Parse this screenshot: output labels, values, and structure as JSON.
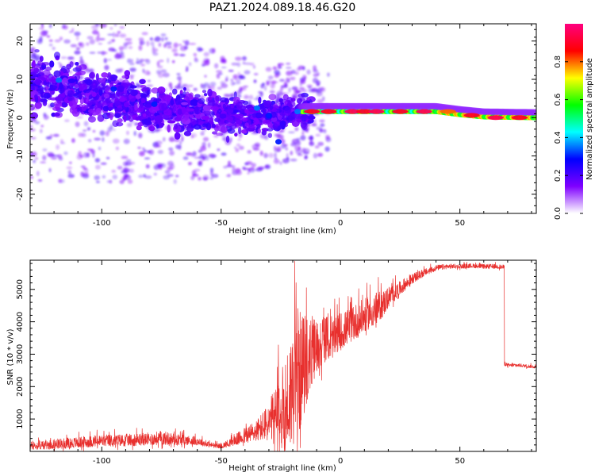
{
  "title": "PAZ1.2024.089.18.46.G20",
  "chart_data": [
    {
      "type": "heatmap",
      "xlabel": "Height of straight line (km)",
      "ylabel": "Frequency (Hz)",
      "xlim": [
        -130,
        82
      ],
      "ylim": [
        -25,
        24.5
      ],
      "xticks": [
        -100,
        -50,
        0,
        50
      ],
      "yticks": [
        20,
        10,
        0,
        -10,
        -20
      ],
      "colorbar": {
        "label": "Normalized spectral amplitude",
        "range": [
          0,
          1
        ],
        "ticks": [
          "0.0",
          "0.2",
          "0.4",
          "0.6",
          "0.8"
        ],
        "colormap": [
          "#ffffff",
          "#7f00ff",
          "#0000ff",
          "#00ffff",
          "#00ff00",
          "#ffff00",
          "#ff0000",
          "#ff0080"
        ]
      },
      "ridge": [
        {
          "x": -130,
          "y": 9.5
        },
        {
          "x": -115,
          "y": 7.5
        },
        {
          "x": -100,
          "y": 5.5
        },
        {
          "x": -85,
          "y": 3.5
        },
        {
          "x": -70,
          "y": 2
        },
        {
          "x": -55,
          "y": 1
        },
        {
          "x": -40,
          "y": 0.5
        },
        {
          "x": -30,
          "y": 0.5
        },
        {
          "x": -20,
          "y": 1.5
        },
        {
          "x": -10,
          "y": 1.6
        },
        {
          "x": 0,
          "y": 1.6
        },
        {
          "x": 20,
          "y": 1.6
        },
        {
          "x": 40,
          "y": 1.6
        },
        {
          "x": 50,
          "y": 0.8
        },
        {
          "x": 60,
          "y": 0.2
        },
        {
          "x": 70,
          "y": 0.1
        },
        {
          "x": 82,
          "y": 0
        }
      ],
      "hotspots": [
        {
          "x": -12,
          "y": 1.6,
          "amp": 0.9
        },
        {
          "x": -5,
          "y": 1.6,
          "amp": 0.9
        },
        {
          "x": 5,
          "y": 1.6,
          "amp": 0.95
        },
        {
          "x": 10,
          "y": 1.6,
          "amp": 0.9
        },
        {
          "x": 15,
          "y": 1.6,
          "amp": 0.95
        },
        {
          "x": 25,
          "y": 1.6,
          "amp": 0.9
        },
        {
          "x": 35,
          "y": 1.6,
          "amp": 0.95
        },
        {
          "x": 45,
          "y": 1.6,
          "amp": 0.8
        },
        {
          "x": 55,
          "y": 0.6,
          "amp": 0.9
        },
        {
          "x": 65,
          "y": 0.0,
          "amp": 0.95
        },
        {
          "x": 75,
          "y": 0.0,
          "amp": 0.9
        },
        {
          "x": -118,
          "y": 9.8,
          "amp": 0.35
        },
        {
          "x": -95,
          "y": 7.5,
          "amp": 0.3
        },
        {
          "x": -78,
          "y": 3.5,
          "amp": 0.3
        },
        {
          "x": -35,
          "y": 2.5,
          "amp": 0.35
        },
        {
          "x": -30,
          "y": 0.5,
          "amp": 0.3
        },
        {
          "x": -26,
          "y": -6.3,
          "amp": 0.3
        },
        {
          "x": -18,
          "y": 1.6,
          "amp": 0.35
        }
      ]
    },
    {
      "type": "line",
      "xlabel": "Height of straight line (km)",
      "ylabel": "SNR (10 * v/v)",
      "xlim": [
        -130,
        82
      ],
      "ylim": [
        0,
        5900
      ],
      "xticks": [
        -100,
        -50,
        0,
        50
      ],
      "yticks": [
        1000,
        2000,
        3000,
        4000,
        5000
      ],
      "color": "#e8302e",
      "series": [
        {
          "x": [
            -130,
            -120,
            -110,
            -100,
            -90,
            -80,
            -75,
            -70,
            -60,
            -55,
            -50,
            -45,
            -40,
            -35,
            -30,
            -25,
            -22,
            -20,
            -18,
            -16,
            -14,
            -12,
            -10,
            -8,
            -6,
            -4,
            -2,
            0,
            2,
            4,
            6,
            8,
            10,
            12,
            14,
            16,
            18,
            20,
            25,
            30,
            35,
            40,
            45,
            50,
            55,
            60,
            65,
            68,
            69,
            70,
            75,
            82
          ],
          "y": [
            150,
            200,
            250,
            300,
            320,
            350,
            380,
            350,
            300,
            200,
            150,
            300,
            450,
            600,
            800,
            1000,
            1300,
            1800,
            2000,
            2300,
            2600,
            2900,
            3100,
            3300,
            3400,
            3300,
            3500,
            3600,
            3700,
            3800,
            3900,
            4000,
            4100,
            4200,
            4300,
            4400,
            4500,
            4700,
            5000,
            5300,
            5500,
            5650,
            5700,
            5700,
            5720,
            5700,
            5700,
            5680,
            2700,
            2650,
            2650,
            2600
          ],
          "noise": [
            150,
            180,
            200,
            220,
            220,
            230,
            260,
            220,
            150,
            100,
            80,
            180,
            300,
            400,
            700,
            1500,
            2000,
            2300,
            2300,
            2000,
            1600,
            1300,
            1000,
            900,
            800,
            700,
            700,
            700,
            650,
            650,
            650,
            650,
            600,
            600,
            600,
            550,
            500,
            400,
            250,
            180,
            130,
            100,
            90,
            80,
            80,
            80,
            80,
            80,
            80,
            60,
            60,
            60
          ]
        }
      ]
    }
  ]
}
